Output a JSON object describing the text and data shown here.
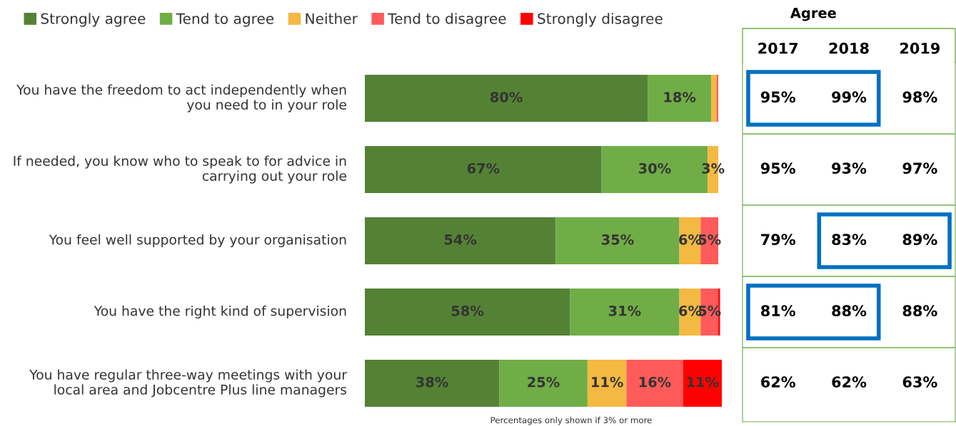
{
  "chart_data": [
    {
      "type": "bar",
      "orientation": "horizontal",
      "stacked": true,
      "legend": "top",
      "categories": [
        "You have the freedom to act independently when you need to in your role",
        "If needed, you know who to speak to for advice in carrying out your role",
        "You feel well supported by your organisation",
        "You have the right kind of supervision",
        "You have regular three-way meetings with your local area and Jobcentre Plus line managers"
      ],
      "series": [
        {
          "name": "Strongly agree",
          "color": "#548235",
          "values": [
            80,
            67,
            54,
            58,
            38
          ],
          "value_labels": [
            "80%",
            "67%",
            "54%",
            "58%",
            "38%"
          ]
        },
        {
          "name": "Tend to agree",
          "color": "#70ad47",
          "values": [
            18,
            30,
            35,
            31,
            25
          ],
          "value_labels": [
            "18%",
            "30%",
            "35%",
            "31%",
            "25%"
          ]
        },
        {
          "name": "Neither",
          "color": "#f4b942",
          "values": [
            1.5,
            3,
            6,
            6,
            11
          ],
          "value_labels": [
            null,
            "3%",
            "6%",
            "6%",
            "11%"
          ]
        },
        {
          "name": "Tend to disagree",
          "color": "#ff5b5b",
          "values": [
            0.5,
            0,
            5,
            5,
            16
          ],
          "value_labels": [
            null,
            null,
            "5%",
            "5%",
            "16%"
          ]
        },
        {
          "name": "Strongly disagree",
          "color": "#ff0000",
          "values": [
            0,
            0,
            0,
            0.5,
            11
          ],
          "value_labels": [
            null,
            null,
            null,
            null,
            "11%"
          ]
        }
      ],
      "annotations": [
        "Percentages only shown if 3% or more"
      ]
    },
    {
      "type": "other",
      "title": "Agree",
      "categories": [
        "2017",
        "2018",
        "2019"
      ],
      "cell_labels": [
        [
          "95%",
          "99%",
          "98%"
        ],
        [
          "95%",
          "93%",
          "97%"
        ],
        [
          "79%",
          "83%",
          "89%"
        ],
        [
          "81%",
          "88%",
          "88%"
        ],
        [
          "62%",
          "62%",
          "63%"
        ]
      ]
    }
  ]
}
